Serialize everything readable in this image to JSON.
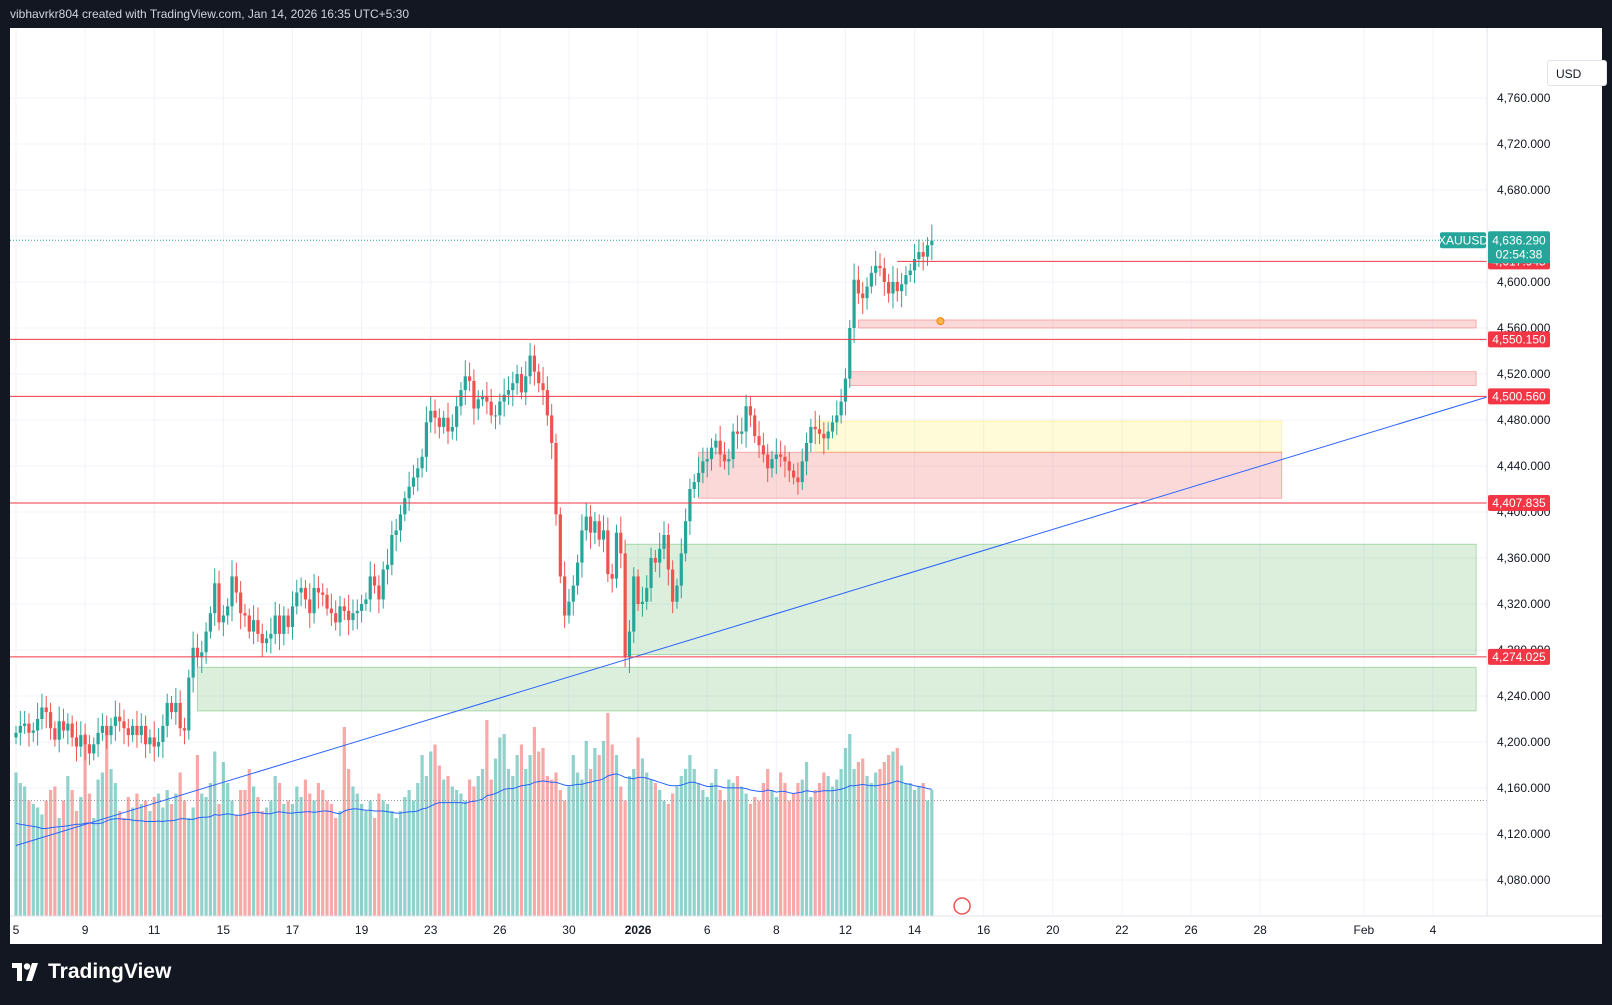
{
  "header": {
    "attribution": "vibhavrkr804 created with TradingView.com, Jan 14, 2026 16:35 UTC+5:30"
  },
  "currency_label": "USD",
  "brand": {
    "name": "TradingView"
  },
  "colors": {
    "up": "#26a69a",
    "down": "#ef5350",
    "level": "#f23645",
    "trend": "#2962ff",
    "ma": "#2962ff"
  },
  "chart_data": {
    "type": "candlestick",
    "symbol": "XAUUSD",
    "last_price": 4636.29,
    "last_price_label": "4,636.290",
    "countdown": "02:54:38",
    "y_ticks": [
      "4,080.000",
      "4,120.000",
      "4,160.000",
      "4,200.000",
      "4,240.000",
      "4,280.000",
      "4,320.000",
      "4,360.000",
      "4,400.000",
      "4,440.000",
      "4,480.000",
      "4,520.000",
      "4,560.000",
      "4,600.000",
      "4,640.000",
      "4,680.000",
      "4,720.000",
      "4,760.000"
    ],
    "y_tick_values": [
      4080,
      4120,
      4160,
      4200,
      4240,
      4280,
      4320,
      4360,
      4400,
      4440,
      4480,
      4520,
      4560,
      4600,
      4640,
      4680,
      4720,
      4760
    ],
    "x_ticks": [
      "5",
      "9",
      "11",
      "15",
      "17",
      "19",
      "23",
      "26",
      "30",
      "2026",
      "6",
      "8",
      "12",
      "14",
      "16",
      "20",
      "22",
      "26",
      "28",
      "Feb",
      "4"
    ],
    "x_tick_bar_index": [
      0,
      16,
      32,
      48,
      64,
      80,
      96,
      112,
      128,
      144,
      160,
      176,
      192,
      208,
      224,
      240,
      256,
      272,
      288,
      312,
      328
    ],
    "levels": [
      {
        "value": 4617.945,
        "label": "4,617.945"
      },
      {
        "value": 4550.15,
        "label": "4,550.150"
      },
      {
        "value": 4500.56,
        "label": "4,500.560"
      },
      {
        "value": 4407.835,
        "label": "4,407.835"
      },
      {
        "value": 4274.025,
        "label": "4,274.025"
      }
    ],
    "zones": [
      {
        "color": "#ef5350",
        "opacity": 0.22,
        "bar_from": 195,
        "bar_to": 338,
        "y_from": 4567,
        "y_to": 4560
      },
      {
        "color": "#ef5350",
        "opacity": 0.22,
        "bar_from": 193,
        "bar_to": 338,
        "y_from": 4522,
        "y_to": 4510
      },
      {
        "color": "#ffeb3b",
        "opacity": 0.2,
        "bar_from": 185,
        "bar_to": 293,
        "y_from": 4479,
        "y_to": 4452
      },
      {
        "color": "#ef5350",
        "opacity": 0.22,
        "bar_from": 158,
        "bar_to": 293,
        "y_from": 4452,
        "y_to": 4412
      },
      {
        "color": "#4caf50",
        "opacity": 0.2,
        "bar_from": 141,
        "bar_to": 338,
        "y_from": 4372,
        "y_to": 4276
      },
      {
        "color": "#4caf50",
        "opacity": 0.2,
        "bar_from": 42,
        "bar_to": 338,
        "y_from": 4265,
        "y_to": 4227
      }
    ],
    "trendline": {
      "x1_bar": 0,
      "y1": 4110,
      "x2_bar": 338,
      "y2": 4500
    },
    "series_close": [
      4208,
      4214,
      4216,
      4208,
      4210,
      4220,
      4230,
      4226,
      4212,
      4202,
      4218,
      4210,
      4216,
      4204,
      4196,
      4206,
      4198,
      4190,
      4198,
      4208,
      4214,
      4206,
      4214,
      4222,
      4218,
      4212,
      4206,
      4214,
      4206,
      4214,
      4198,
      4204,
      4196,
      4200,
      4214,
      4234,
      4226,
      4234,
      4212,
      4210,
      4256,
      4282,
      4274,
      4278,
      4296,
      4312,
      4338,
      4304,
      4310,
      4318,
      4344,
      4330,
      4312,
      4310,
      4296,
      4306,
      4294,
      4286,
      4290,
      4294,
      4310,
      4294,
      4310,
      4300,
      4318,
      4330,
      4334,
      4324,
      4312,
      4334,
      4330,
      4328,
      4316,
      4312,
      4304,
      4318,
      4314,
      4306,
      4312,
      4314,
      4320,
      4324,
      4344,
      4336,
      4324,
      4350,
      4354,
      4380,
      4384,
      4398,
      4412,
      4422,
      4430,
      4438,
      4448,
      4478,
      4488,
      4482,
      4474,
      4482,
      4470,
      4474,
      4492,
      4506,
      4518,
      4514,
      4490,
      4498,
      4500,
      4496,
      4484,
      4484,
      4496,
      4502,
      4506,
      4512,
      4520,
      4504,
      4518,
      4536,
      4522,
      4512,
      4506,
      4484,
      4460,
      4398,
      4344,
      4310,
      4322,
      4336,
      4356,
      4384,
      4396,
      4382,
      4392,
      4376,
      4384,
      4346,
      4342,
      4382,
      4364,
      4274,
      4296,
      4344,
      4320,
      4322,
      4334,
      4360,
      4356,
      4368,
      4380,
      4350,
      4322,
      4336,
      4364,
      4392,
      4420,
      4426,
      4434,
      4444,
      4446,
      4456,
      4462,
      4450,
      4444,
      4446,
      4470,
      4468,
      4470,
      4492,
      4484,
      4466,
      4458,
      4450,
      4438,
      4446,
      4450,
      4448,
      4444,
      4436,
      4430,
      4426,
      4444,
      4460,
      4474,
      4472,
      4468,
      4464,
      4470,
      4478,
      4484,
      4496,
      4516,
      4560,
      4602,
      4590,
      4586,
      4596,
      4608,
      4614,
      4612,
      4600,
      4590,
      4600,
      4592,
      4598,
      4606,
      4610,
      4620,
      4626,
      4622,
      4632,
      4636
    ],
    "volume": [
      410,
      380,
      370,
      330,
      320,
      310,
      290,
      330,
      360,
      370,
      280,
      330,
      400,
      360,
      300,
      340,
      520,
      350,
      280,
      390,
      410,
      530,
      420,
      380,
      300,
      280,
      340,
      310,
      350,
      320,
      330,
      300,
      340,
      350,
      310,
      360,
      320,
      350,
      410,
      330,
      280,
      310,
      460,
      350,
      340,
      380,
      470,
      320,
      440,
      380,
      330,
      290,
      360,
      360,
      420,
      370,
      340,
      300,
      310,
      330,
      400,
      380,
      320,
      330,
      320,
      370,
      340,
      390,
      350,
      330,
      380,
      360,
      330,
      320,
      280,
      300,
      540,
      420,
      370,
      350,
      320,
      300,
      330,
      280,
      350,
      330,
      320,
      300,
      280,
      300,
      340,
      360,
      330,
      380,
      460,
      400,
      470,
      490,
      430,
      390,
      400,
      370,
      360,
      350,
      330,
      390,
      370,
      400,
      420,
      560,
      390,
      450,
      510,
      520,
      420,
      400,
      460,
      490,
      420,
      460,
      540,
      470,
      480,
      400,
      390,
      410,
      360,
      330,
      370,
      460,
      410,
      390,
      500,
      420,
      480,
      460,
      500,
      580,
      490,
      460,
      370,
      330,
      400,
      420,
      510,
      450,
      410,
      390,
      380,
      360,
      330,
      320,
      350,
      370,
      400,
      420,
      460,
      420,
      380,
      360,
      340,
      380,
      420,
      360,
      330,
      390,
      380,
      400,
      370,
      350,
      320,
      340,
      330,
      380,
      420,
      360,
      340,
      410,
      380,
      330,
      350,
      380,
      390,
      440,
      340,
      360,
      380,
      410,
      400,
      370,
      390,
      420,
      480,
      520,
      420,
      440,
      450,
      400,
      380,
      410,
      420,
      440,
      460,
      470,
      480,
      430,
      380,
      380,
      360,
      370,
      380,
      330,
      360
    ],
    "volume_ma": [
      265,
      262,
      260,
      258,
      256,
      254,
      250,
      250,
      252,
      254,
      255,
      256,
      258,
      260,
      262,
      262,
      265,
      266,
      264,
      264,
      266,
      272,
      276,
      278,
      278,
      276,
      276,
      274,
      272,
      272,
      270,
      270,
      270,
      271,
      270,
      272,
      272,
      274,
      278,
      278,
      276,
      276,
      280,
      282,
      282,
      284,
      290,
      288,
      290,
      292,
      290,
      288,
      288,
      290,
      294,
      296,
      296,
      294,
      292,
      292,
      296,
      298,
      296,
      294,
      294,
      296,
      296,
      298,
      298,
      296,
      298,
      300,
      300,
      298,
      294,
      292,
      300,
      304,
      306,
      306,
      304,
      302,
      302,
      300,
      300,
      300,
      298,
      296,
      294,
      294,
      296,
      298,
      298,
      300,
      306,
      308,
      314,
      320,
      324,
      324,
      324,
      324,
      324,
      324,
      322,
      326,
      328,
      330,
      334,
      344,
      346,
      350,
      356,
      362,
      364,
      364,
      368,
      372,
      374,
      376,
      382,
      384,
      386,
      384,
      382,
      382,
      378,
      374,
      372,
      374,
      376,
      376,
      380,
      382,
      386,
      388,
      392,
      400,
      404,
      406,
      402,
      396,
      394,
      392,
      396,
      396,
      394,
      390,
      386,
      382,
      378,
      374,
      372,
      372,
      374,
      378,
      382,
      382,
      378,
      374,
      370,
      370,
      372,
      370,
      366,
      366,
      366,
      366,
      366,
      364,
      360,
      358,
      356,
      356,
      360,
      358,
      354,
      356,
      356,
      352,
      350,
      352,
      354,
      358,
      356,
      354,
      356,
      358,
      358,
      358,
      360,
      362,
      366,
      372,
      372,
      374,
      376,
      374,
      372,
      372,
      374,
      376,
      378,
      382,
      386,
      382,
      378,
      376,
      372,
      370,
      368,
      364,
      362
    ]
  }
}
